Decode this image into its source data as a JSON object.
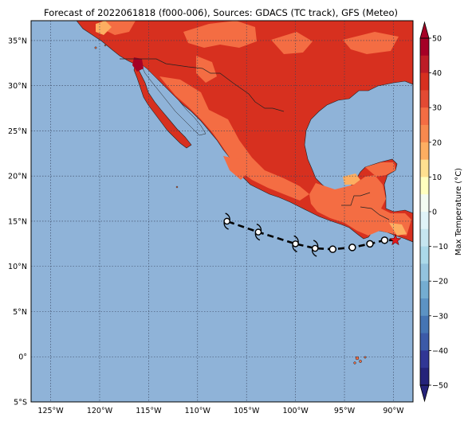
{
  "title": "Forecast of 2022061818 (f000-006), Sources: GDACS (TC track), GFS (Meteo)",
  "colors": {
    "ocean": "#8fb3d8",
    "land_hot": "#d7301f",
    "land_warm": "#f46d43",
    "land_mild": "#fdae61",
    "land_extreme": "#a50026",
    "marker": "#e31a1c"
  },
  "map": {
    "lon_ticks": [
      "125°W",
      "120°W",
      "115°W",
      "110°W",
      "105°W",
      "100°W",
      "95°W",
      "90°W"
    ],
    "lat_ticks": [
      "35°N",
      "30°N",
      "25°N",
      "20°N",
      "15°N",
      "10°N",
      "5°N",
      "0°",
      "5°S"
    ],
    "lon_values": [
      -125,
      -120,
      -115,
      -110,
      -105,
      -100,
      -95,
      -90
    ],
    "lat_values": [
      35,
      30,
      25,
      20,
      15,
      10,
      5,
      0,
      -5
    ],
    "extent": {
      "lon_min": -127,
      "lon_max": -88,
      "lat_min": -5,
      "lat_max": 37.2
    }
  },
  "track": {
    "points": [
      {
        "lon": -89.8,
        "lat": 12.9,
        "type": "current"
      },
      {
        "lon": -90.9,
        "lat": 12.9,
        "type": "circle"
      },
      {
        "lon": -92.4,
        "lat": 12.5,
        "type": "circle"
      },
      {
        "lon": -94.2,
        "lat": 12.1,
        "type": "circle"
      },
      {
        "lon": -96.2,
        "lat": 11.9,
        "type": "circle"
      },
      {
        "lon": -98.0,
        "lat": 12.0,
        "type": "storm"
      },
      {
        "lon": -100.0,
        "lat": 12.5,
        "type": "storm"
      },
      {
        "lon": -103.8,
        "lat": 13.8,
        "type": "storm"
      },
      {
        "lon": -107.0,
        "lat": 15.0,
        "type": "storm"
      }
    ]
  },
  "colorbar": {
    "label": "Max Temperature (°C)",
    "ticks": [
      "50",
      "40",
      "30",
      "20",
      "10",
      "0",
      "−10",
      "−20",
      "−30",
      "−40",
      "−50"
    ],
    "levels": [
      {
        "from": 45,
        "to": 50,
        "color": "#a50026"
      },
      {
        "from": 40,
        "to": 45,
        "color": "#bd1c27"
      },
      {
        "from": 35,
        "to": 40,
        "color": "#d7301f"
      },
      {
        "from": 30,
        "to": 35,
        "color": "#e34a33"
      },
      {
        "from": 25,
        "to": 30,
        "color": "#f46d43"
      },
      {
        "from": 20,
        "to": 25,
        "color": "#f7894e"
      },
      {
        "from": 15,
        "to": 20,
        "color": "#fdae61"
      },
      {
        "from": 10,
        "to": 15,
        "color": "#fee090"
      },
      {
        "from": 5,
        "to": 10,
        "color": "#ffffbf"
      },
      {
        "from": 0,
        "to": 5,
        "color": "#f3fbf2"
      },
      {
        "from": -5,
        "to": 0,
        "color": "#e0f3f8"
      },
      {
        "from": -10,
        "to": -5,
        "color": "#c6e6f0"
      },
      {
        "from": -15,
        "to": -10,
        "color": "#abd9e9"
      },
      {
        "from": -20,
        "to": -15,
        "color": "#93c3de"
      },
      {
        "from": -25,
        "to": -20,
        "color": "#74add1"
      },
      {
        "from": -30,
        "to": -25,
        "color": "#5c93c4"
      },
      {
        "from": -35,
        "to": -30,
        "color": "#4575b4"
      },
      {
        "from": -40,
        "to": -35,
        "color": "#3b5aa8"
      },
      {
        "from": -45,
        "to": -40,
        "color": "#313695"
      },
      {
        "from": -50,
        "to": -45,
        "color": "#25237a"
      }
    ]
  }
}
